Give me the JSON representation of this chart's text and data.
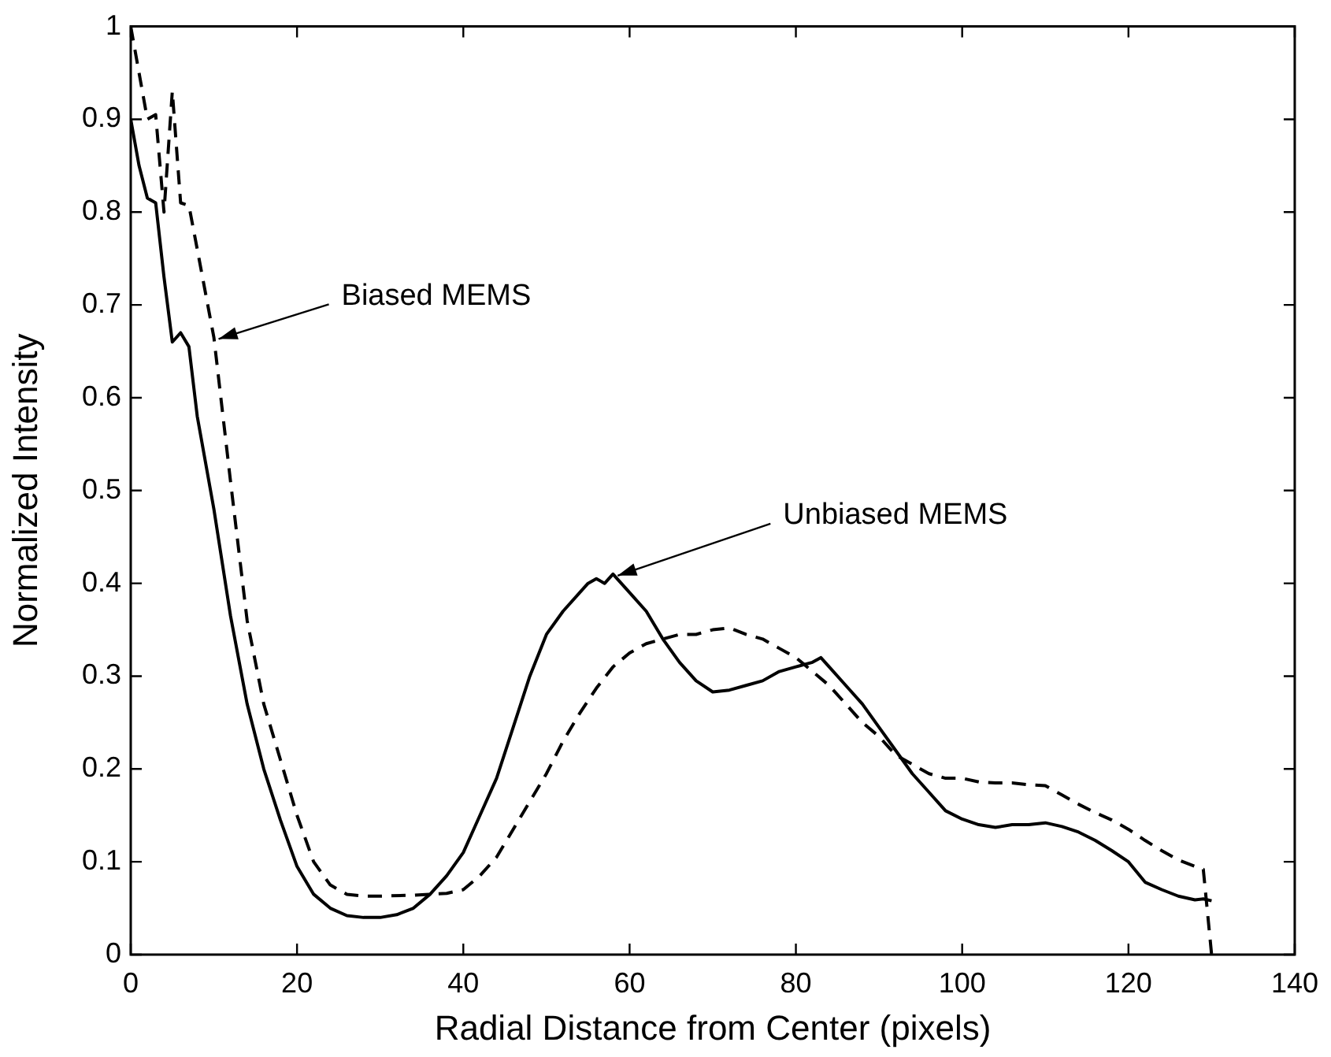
{
  "chart_data": {
    "type": "line",
    "xlabel": "Radial Distance from Center (pixels)",
    "ylabel": "Normalized Intensity",
    "xlim": [
      0,
      140
    ],
    "xticks": [
      0,
      20,
      40,
      60,
      80,
      100,
      120,
      140
    ],
    "ylim": [
      0,
      1
    ],
    "yticks": [
      0,
      0.1,
      0.2,
      0.3,
      0.4,
      0.5,
      0.6,
      0.7,
      0.8,
      0.9,
      1
    ],
    "grid": false,
    "legend": false,
    "marker": "none",
    "annotations": [
      {
        "text": "Biased MEMS",
        "x": 10,
        "y": 0.665
      },
      {
        "text": "Unbiased MEMS",
        "x": 58,
        "y": 0.41
      }
    ],
    "series": [
      {
        "color": "#000000",
        "line_style": "solid",
        "x": [
          0,
          1,
          2,
          3,
          4,
          5,
          6,
          7,
          8,
          10,
          12,
          14,
          16,
          18,
          20,
          22,
          24,
          26,
          28,
          30,
          32,
          34,
          36,
          38,
          40,
          42,
          44,
          46,
          48,
          50,
          52,
          54,
          55,
          56,
          57,
          58,
          59,
          60,
          62,
          64,
          66,
          68,
          70,
          72,
          74,
          76,
          78,
          80,
          82,
          83,
          84,
          86,
          88,
          90,
          92,
          94,
          96,
          98,
          100,
          102,
          104,
          106,
          108,
          110,
          112,
          114,
          116,
          118,
          120,
          122,
          124,
          126,
          128,
          129,
          130
        ],
        "values": [
          0.9,
          0.85,
          0.815,
          0.81,
          0.73,
          0.66,
          0.67,
          0.655,
          0.58,
          0.48,
          0.365,
          0.27,
          0.2,
          0.145,
          0.095,
          0.065,
          0.05,
          0.042,
          0.04,
          0.04,
          0.043,
          0.05,
          0.065,
          0.085,
          0.11,
          0.15,
          0.19,
          0.245,
          0.3,
          0.345,
          0.37,
          0.39,
          0.4,
          0.405,
          0.4,
          0.41,
          0.4,
          0.39,
          0.37,
          0.34,
          0.315,
          0.295,
          0.283,
          0.285,
          0.29,
          0.295,
          0.305,
          0.31,
          0.315,
          0.32,
          0.31,
          0.29,
          0.27,
          0.245,
          0.22,
          0.195,
          0.175,
          0.155,
          0.146,
          0.14,
          0.137,
          0.14,
          0.14,
          0.142,
          0.138,
          0.132,
          0.123,
          0.112,
          0.1,
          0.078,
          0.07,
          0.063,
          0.059,
          0.06,
          0.058
        ]
      },
      {
        "color": "#000000",
        "line_style": "dashed",
        "x": [
          0,
          1,
          2,
          3,
          4,
          5,
          6,
          7,
          8,
          10,
          12,
          14,
          16,
          18,
          20,
          22,
          24,
          26,
          28,
          30,
          34,
          36,
          38,
          40,
          42,
          44,
          46,
          48,
          50,
          52,
          54,
          56,
          58,
          60,
          62,
          64,
          66,
          68,
          70,
          72,
          74,
          76,
          78,
          80,
          82,
          84,
          86,
          88,
          90,
          92,
          94,
          96,
          98,
          100,
          102,
          104,
          106,
          108,
          110,
          112,
          114,
          116,
          118,
          120,
          122,
          124,
          126,
          128,
          129,
          130
        ],
        "values": [
          1.0,
          0.95,
          0.9,
          0.905,
          0.8,
          0.93,
          0.81,
          0.807,
          0.76,
          0.665,
          0.51,
          0.36,
          0.27,
          0.21,
          0.15,
          0.1,
          0.075,
          0.065,
          0.063,
          0.063,
          0.064,
          0.065,
          0.066,
          0.07,
          0.085,
          0.105,
          0.135,
          0.165,
          0.195,
          0.23,
          0.26,
          0.287,
          0.31,
          0.325,
          0.335,
          0.34,
          0.345,
          0.345,
          0.35,
          0.352,
          0.345,
          0.34,
          0.33,
          0.32,
          0.305,
          0.29,
          0.27,
          0.25,
          0.235,
          0.215,
          0.205,
          0.195,
          0.19,
          0.19,
          0.186,
          0.185,
          0.185,
          0.183,
          0.182,
          0.172,
          0.162,
          0.153,
          0.145,
          0.135,
          0.123,
          0.112,
          0.102,
          0.095,
          0.092,
          0
        ]
      }
    ]
  }
}
